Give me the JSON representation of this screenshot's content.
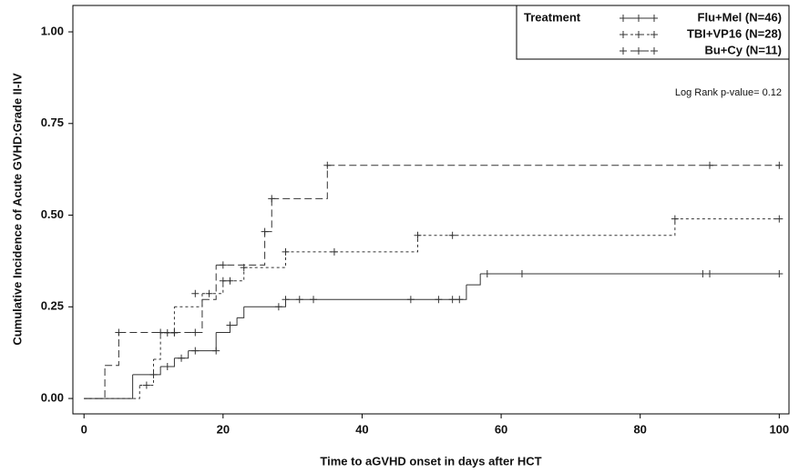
{
  "chart_data": {
    "type": "step",
    "x_label": "Time to aGVHD onset in days after HCT",
    "y_label": "Cumulative Incidence of Acute GVHD:Grade II-IV",
    "legend_title": "Treatment",
    "annotation": "Log Rank p-value= 0.12",
    "legend_position": "top-right",
    "xlim": [
      -1.6,
      101.4
    ],
    "ylim": [
      -0.042,
      1.072
    ],
    "xticks": [
      0,
      20,
      40,
      60,
      80,
      100
    ],
    "yticks": [
      {
        "value": 0,
        "label": "0.00"
      },
      {
        "value": 0.25,
        "label": "0.25"
      },
      {
        "value": 0.5,
        "label": "0.50"
      },
      {
        "value": 0.75,
        "label": "0.75"
      },
      {
        "value": 1,
        "label": "1.00"
      }
    ],
    "series": [
      {
        "name": "Flu+Mel (N=46)",
        "color": "#333333",
        "dash": "none",
        "x": [
          0,
          7,
          11,
          13,
          15,
          19,
          21,
          22,
          23,
          29,
          55,
          57,
          100
        ],
        "values": [
          0,
          0.065,
          0.087,
          0.11,
          0.13,
          0.18,
          0.2,
          0.22,
          0.25,
          0.27,
          0.31,
          0.34,
          0.34
        ],
        "censor_x": [
          10,
          12,
          14,
          16,
          19,
          21,
          28,
          29,
          31,
          33,
          47,
          51,
          53,
          54,
          58,
          63,
          89,
          90,
          100
        ],
        "censor_values": [
          0.065,
          0.087,
          0.11,
          0.13,
          0.13,
          0.2,
          0.25,
          0.27,
          0.27,
          0.27,
          0.27,
          0.27,
          0.27,
          0.27,
          0.34,
          0.34,
          0.34,
          0.34,
          0.34
        ]
      },
      {
        "name": "TBI+VP16 (N=28)",
        "color": "#333333",
        "dash": "3,3",
        "x": [
          0,
          8,
          10,
          11,
          13,
          17,
          20,
          23,
          29,
          48,
          85,
          100
        ],
        "values": [
          0,
          0.036,
          0.107,
          0.179,
          0.25,
          0.286,
          0.321,
          0.357,
          0.4,
          0.445,
          0.49,
          0.49
        ],
        "censor_x": [
          9,
          12,
          13,
          16,
          18,
          20,
          21,
          23,
          29,
          36,
          48,
          53,
          85,
          100
        ],
        "censor_values": [
          0.036,
          0.179,
          0.179,
          0.286,
          0.286,
          0.321,
          0.321,
          0.357,
          0.4,
          0.4,
          0.445,
          0.445,
          0.49,
          0.49
        ]
      },
      {
        "name": "Bu+Cy (N=11)",
        "color": "#333333",
        "dash": "8,4",
        "x": [
          0,
          3,
          5,
          17,
          19,
          26,
          27,
          35,
          100
        ],
        "values": [
          0,
          0.09,
          0.18,
          0.27,
          0.364,
          0.455,
          0.545,
          0.636,
          0.636
        ],
        "censor_x": [
          5,
          11,
          13,
          16,
          20,
          26,
          27,
          35,
          90,
          100
        ],
        "censor_values": [
          0.18,
          0.18,
          0.18,
          0.18,
          0.364,
          0.455,
          0.545,
          0.636,
          0.636,
          0.636
        ]
      }
    ]
  }
}
